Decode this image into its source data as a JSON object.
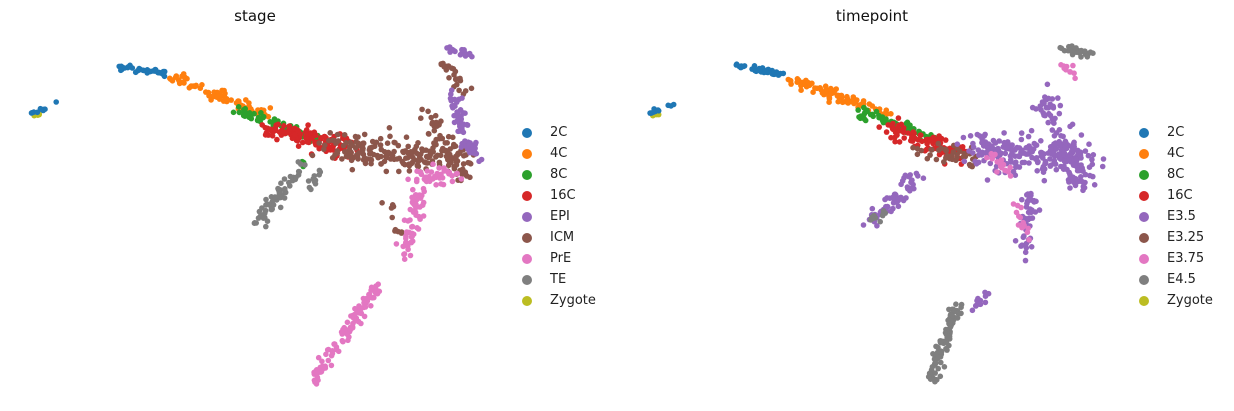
{
  "chart_data": [
    {
      "type": "scatter",
      "title": "stage",
      "xlabel": "",
      "ylabel": "",
      "axes_visible": false,
      "legend_position": "right",
      "categories": [
        {
          "name": "2C",
          "color": "#1f77b4"
        },
        {
          "name": "4C",
          "color": "#ff7f0e"
        },
        {
          "name": "8C",
          "color": "#2ca02c"
        },
        {
          "name": "16C",
          "color": "#d62728"
        },
        {
          "name": "EPI",
          "color": "#9467bd"
        },
        {
          "name": "ICM",
          "color": "#8c564b"
        },
        {
          "name": "PrE",
          "color": "#e377c2"
        },
        {
          "name": "TE",
          "color": "#7f7f7f"
        },
        {
          "name": "Zygote",
          "color": "#bcbd22"
        }
      ],
      "point_clusters": [
        {
          "category": "Zygote",
          "path": [
            [
              35,
              116
            ],
            [
              40,
              113
            ]
          ],
          "count": 8,
          "spread": 2
        },
        {
          "category": "2C",
          "path": [
            [
              30,
              114
            ],
            [
              56,
              104
            ]
          ],
          "count": 10,
          "spread": 2
        },
        {
          "category": "2C",
          "path": [
            [
              120,
              66
            ],
            [
              165,
              74
            ]
          ],
          "count": 40,
          "spread": 3
        },
        {
          "category": "4C",
          "path": [
            [
              172,
              78
            ],
            [
              270,
              115
            ]
          ],
          "count": 80,
          "spread": 5
        },
        {
          "category": "8C",
          "path": [
            [
              240,
              112
            ],
            [
              318,
              140
            ]
          ],
          "count": 60,
          "spread": 6
        },
        {
          "category": "8C",
          "path": [
            [
              300,
              160
            ],
            [
              304,
              166
            ]
          ],
          "count": 8,
          "spread": 2
        },
        {
          "category": "16C",
          "path": [
            [
              270,
              128
            ],
            [
              355,
              150
            ]
          ],
          "count": 110,
          "spread": 9
        },
        {
          "category": "ICM",
          "path": [
            [
              330,
              150
            ],
            [
              470,
              160
            ]
          ],
          "count": 200,
          "spread": 16
        },
        {
          "category": "ICM",
          "path": [
            [
              425,
              110
            ],
            [
              465,
              180
            ]
          ],
          "count": 40,
          "spread": 10
        },
        {
          "category": "ICM",
          "path": [
            [
              443,
              60
            ],
            [
              465,
              90
            ]
          ],
          "count": 22,
          "spread": 6
        },
        {
          "category": "ICM",
          "path": [
            [
              390,
              200
            ],
            [
              405,
              245
            ]
          ],
          "count": 10,
          "spread": 5
        },
        {
          "category": "EPI",
          "path": [
            [
              448,
              50
            ],
            [
              472,
              55
            ]
          ],
          "count": 22,
          "spread": 4
        },
        {
          "category": "EPI",
          "path": [
            [
              455,
              95
            ],
            [
              462,
              130
            ]
          ],
          "count": 40,
          "spread": 7
        },
        {
          "category": "EPI",
          "path": [
            [
              465,
              140
            ],
            [
              480,
              158
            ]
          ],
          "count": 30,
          "spread": 6
        },
        {
          "category": "PrE",
          "path": [
            [
              420,
              180
            ],
            [
              455,
              175
            ]
          ],
          "count": 40,
          "spread": 8
        },
        {
          "category": "PrE",
          "path": [
            [
              420,
              190
            ],
            [
              405,
              255
            ]
          ],
          "count": 60,
          "spread": 8
        },
        {
          "category": "PrE",
          "path": [
            [
              378,
              285
            ],
            [
              313,
              380
            ]
          ],
          "count": 100,
          "spread": 6
        },
        {
          "category": "TE",
          "path": [
            [
              300,
              168
            ],
            [
              255,
              228
            ]
          ],
          "count": 60,
          "spread": 7
        },
        {
          "category": "TE",
          "path": [
            [
              308,
              185
            ],
            [
              322,
              172
            ]
          ],
          "count": 12,
          "spread": 5
        }
      ]
    },
    {
      "type": "scatter",
      "title": "timepoint",
      "xlabel": "",
      "ylabel": "",
      "axes_visible": false,
      "legend_position": "right",
      "categories": [
        {
          "name": "2C",
          "color": "#1f77b4"
        },
        {
          "name": "4C",
          "color": "#ff7f0e"
        },
        {
          "name": "8C",
          "color": "#2ca02c"
        },
        {
          "name": "16C",
          "color": "#d62728"
        },
        {
          "name": "E3.5",
          "color": "#9467bd"
        },
        {
          "name": "E3.25",
          "color": "#8c564b"
        },
        {
          "name": "E3.75",
          "color": "#e377c2"
        },
        {
          "name": "E4.5",
          "color": "#7f7f7f"
        },
        {
          "name": "Zygote",
          "color": "#bcbd22"
        }
      ],
      "point_clusters": [
        {
          "category": "Zygote",
          "path": [
            [
              35,
              116
            ],
            [
              40,
              113
            ]
          ],
          "count": 8,
          "spread": 2
        },
        {
          "category": "2C",
          "path": [
            [
              30,
              114
            ],
            [
              56,
              104
            ]
          ],
          "count": 10,
          "spread": 2
        },
        {
          "category": "2C",
          "path": [
            [
              120,
              66
            ],
            [
              165,
              74
            ]
          ],
          "count": 40,
          "spread": 3
        },
        {
          "category": "4C",
          "path": [
            [
              172,
              78
            ],
            [
              270,
              115
            ]
          ],
          "count": 80,
          "spread": 5
        },
        {
          "category": "8C",
          "path": [
            [
              240,
              112
            ],
            [
              318,
              140
            ]
          ],
          "count": 60,
          "spread": 6
        },
        {
          "category": "16C",
          "path": [
            [
              270,
              128
            ],
            [
              345,
              155
            ]
          ],
          "count": 90,
          "spread": 9
        },
        {
          "category": "E3.25",
          "path": [
            [
              300,
              150
            ],
            [
              360,
              158
            ]
          ],
          "count": 40,
          "spread": 10
        },
        {
          "category": "E3.5",
          "path": [
            [
              360,
              150
            ],
            [
              470,
              160
            ]
          ],
          "count": 220,
          "spread": 18
        },
        {
          "category": "E3.5",
          "path": [
            [
              425,
              90
            ],
            [
              465,
              190
            ]
          ],
          "count": 90,
          "spread": 12
        },
        {
          "category": "E3.5",
          "path": [
            [
              415,
              195
            ],
            [
              405,
              255
            ]
          ],
          "count": 50,
          "spread": 8
        },
        {
          "category": "E3.5",
          "path": [
            [
              300,
              175
            ],
            [
              255,
              225
            ]
          ],
          "count": 60,
          "spread": 7
        },
        {
          "category": "E3.5",
          "path": [
            [
              380,
              285
            ],
            [
              355,
              310
            ]
          ],
          "count": 12,
          "spread": 4
        },
        {
          "category": "E3.75",
          "path": [
            [
              445,
              65
            ],
            [
              460,
              75
            ]
          ],
          "count": 10,
          "spread": 3
        },
        {
          "category": "E3.75",
          "path": [
            [
              370,
              150
            ],
            [
              395,
              180
            ]
          ],
          "count": 18,
          "spread": 6
        },
        {
          "category": "E3.75",
          "path": [
            [
              400,
              205
            ],
            [
              410,
              240
            ]
          ],
          "count": 14,
          "spread": 5
        },
        {
          "category": "E4.5",
          "path": [
            [
              442,
              48
            ],
            [
              475,
              55
            ]
          ],
          "count": 28,
          "spread": 4
        },
        {
          "category": "E4.5",
          "path": [
            [
              340,
              305
            ],
            [
              313,
              380
            ]
          ],
          "count": 90,
          "spread": 6
        },
        {
          "category": "E4.5",
          "path": [
            [
              255,
              220
            ],
            [
              270,
              212
            ]
          ],
          "count": 10,
          "spread": 3
        }
      ]
    }
  ]
}
